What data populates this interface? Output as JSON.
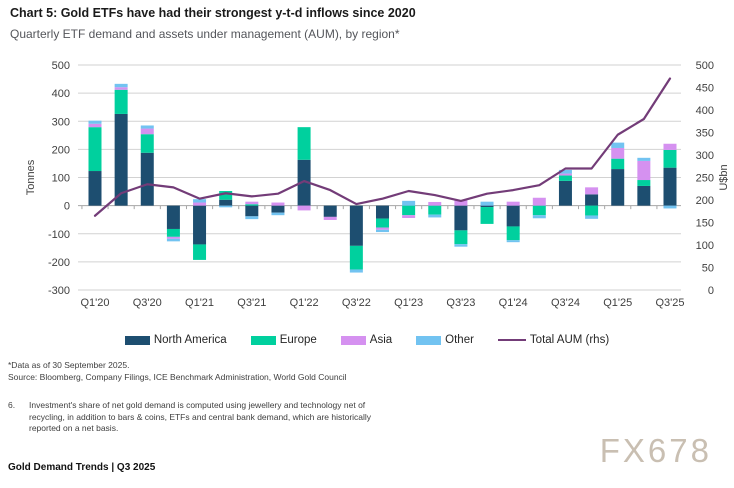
{
  "header": {
    "title": "Chart 5: Gold ETFs have had their strongest y-t-d inflows since 2020",
    "subtitle": "Quarterly ETF demand and assets under management (AUM), by region*"
  },
  "colors": {
    "north_america": "#1d4e70",
    "europe": "#00d09e",
    "asia": "#d591f0",
    "other": "#72c3f1",
    "aum_line": "#733c78",
    "gridline": "#d2d2d2",
    "axis_line": "#a6a6a6",
    "axis_text": "#404040",
    "title_text": "#1a1a1a",
    "subtitle_text": "#54565b",
    "watermark": "#c9bfb2"
  },
  "chart_data": {
    "type": "bar",
    "subtype": "stacked-bar-with-line",
    "title": "Quarterly ETF demand and assets under management (AUM), by region",
    "categories": [
      "Q1'20",
      "Q2'20",
      "Q3'20",
      "Q4'20",
      "Q1'21",
      "Q2'21",
      "Q3'21",
      "Q4'21",
      "Q1'22",
      "Q2'22",
      "Q3'22",
      "Q4'22",
      "Q1'23",
      "Q2'23",
      "Q3'23",
      "Q4'23",
      "Q1'24",
      "Q2'24",
      "Q3'24",
      "Q4'24",
      "Q1'25",
      "Q2'25",
      "Q3'25"
    ],
    "x_tick_labels": [
      "Q1'20",
      "Q3'20",
      "Q1'21",
      "Q3'21",
      "Q1'22",
      "Q3'22",
      "Q1'23",
      "Q3'23",
      "Q1'24",
      "Q3'24",
      "Q1'25",
      "Q3'25"
    ],
    "series": [
      {
        "name": "North America",
        "type": "bar",
        "axis": "left",
        "color_key": "north_america",
        "values": [
          123,
          326,
          188,
          -83,
          -138,
          21,
          -38,
          -25,
          163,
          -40,
          -143,
          -46,
          0,
          0,
          -88,
          -5,
          -74,
          0,
          88,
          40,
          130,
          70,
          135
        ]
      },
      {
        "name": "Europe",
        "type": "bar",
        "axis": "left",
        "color_key": "europe",
        "values": [
          156,
          86,
          66,
          -28,
          -55,
          31,
          5,
          0,
          116,
          0,
          -84,
          -32,
          -34,
          -32,
          -49,
          -60,
          -49,
          -34,
          19,
          -35,
          37,
          21,
          63
        ]
      },
      {
        "name": "Asia",
        "type": "bar",
        "axis": "left",
        "color_key": "asia",
        "values": [
          12,
          9,
          20,
          -7,
          11,
          0,
          9,
          11,
          -17,
          -11,
          0,
          -8,
          -10,
          13,
          19,
          0,
          14,
          28,
          7,
          25,
          38,
          68,
          22
        ]
      },
      {
        "name": "Other",
        "type": "bar",
        "axis": "left",
        "color_key": "other",
        "values": [
          11,
          12,
          11,
          -9,
          12,
          -6,
          -10,
          -9,
          0,
          0,
          -11,
          -8,
          17,
          -10,
          -9,
          14,
          -7,
          -11,
          13,
          -12,
          19,
          11,
          -10
        ]
      },
      {
        "name": "Total AUM (rhs)",
        "type": "line",
        "axis": "right",
        "color_key": "aum_line",
        "values": [
          165,
          215,
          235,
          228,
          203,
          215,
          208,
          214,
          242,
          222,
          191,
          203,
          220,
          211,
          198,
          214,
          222,
          233,
          270,
          270,
          345,
          380,
          470
        ]
      }
    ],
    "left_axis": {
      "title": "Tonnes",
      "min": -300,
      "max": 500,
      "step": 100
    },
    "right_axis": {
      "title": "U$bn",
      "min": 0,
      "max": 500,
      "step": 50
    },
    "grid": true,
    "legend_position": "bottom"
  },
  "legend": {
    "items": [
      {
        "label": "North America",
        "color_key": "north_america",
        "type": "bar"
      },
      {
        "label": "Europe",
        "color_key": "europe",
        "type": "bar"
      },
      {
        "label": "Asia",
        "color_key": "asia",
        "type": "bar"
      },
      {
        "label": "Other",
        "color_key": "other",
        "type": "bar"
      },
      {
        "label": "Total AUM (rhs)",
        "color_key": "aum_line",
        "type": "line"
      }
    ]
  },
  "footnotes": {
    "data_note": "*Data as of 30 September 2025.",
    "source": "Source: Bloomberg, Company Filings, ICE Benchmark Administration, World Gold Council",
    "numbered_note_index": "6.",
    "numbered_note": "Investment's share of net gold demand is computed using jewellery and technology net of recycling, in addition to bars & coins, ETFs and central bank demand, which are historically reported on a net basis."
  },
  "footer": {
    "text": "Gold Demand Trends | Q3 2025"
  },
  "watermark": {
    "text": "FX678"
  }
}
